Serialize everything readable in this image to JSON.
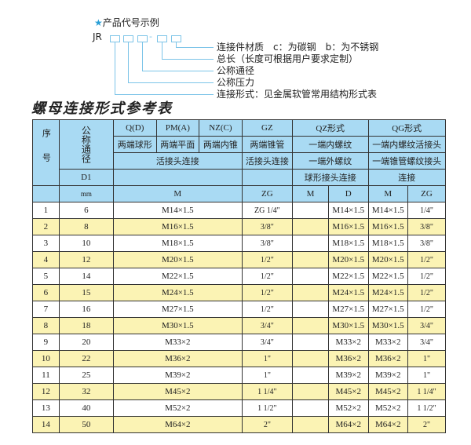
{
  "legend": {
    "title": "产品代号示例",
    "star_icon": "star",
    "code_prefix": "JR",
    "separator": "-",
    "items": [
      "连接件材质　c：为碳钢　b：为不锈钢",
      "总长（长度可根据用户要求定制）",
      "公称通径",
      "公称压力",
      "连接形式：见金属软管常用结构形式表"
    ]
  },
  "title": "螺母连接形式参考表",
  "header": {
    "seq": "序号",
    "dn": "公称通径",
    "d1": "D1",
    "mm": "mm",
    "q": "Q(D)",
    "pm": "PM(A)",
    "nz": "NZ(C)",
    "gz": "GZ",
    "qz": "QZ形式",
    "qg": "QG形式",
    "q2": "两端球形",
    "pm2": "两端平面",
    "nz2": "两端内锥",
    "gz2": "两端锥管",
    "qz2": "一端内螺纹",
    "qg2": "一端内螺纹活接头",
    "huo": "活接头连接",
    "gz3": "活接头连接",
    "qz3": "一端外螺纹",
    "qg3": "一端锥管螺纹接头",
    "qz4": "球形接头连接",
    "qg4": "连接",
    "m": "M",
    "zg": "ZG",
    "qzm": "M",
    "qzd": "D",
    "qgm": "M",
    "qgzg": "ZG"
  },
  "colors": {
    "header": "#a9daf3",
    "alt_row": "#fbf3b4",
    "accent": "#2a9fd6"
  },
  "rows": [
    {
      "n": "1",
      "dn": "6",
      "m": "M14×1.5",
      "zg": "ZG 1/4\"",
      "qzm": "",
      "d": "M14×1.5",
      "qgm": "M14×1.5",
      "qgzg": "1/4\""
    },
    {
      "n": "2",
      "dn": "8",
      "m": "M16×1.5",
      "zg": "3/8\"",
      "qzm": "",
      "d": "M16×1.5",
      "qgm": "M16×1.5",
      "qgzg": "3/8\""
    },
    {
      "n": "3",
      "dn": "10",
      "m": "M18×1.5",
      "zg": "3/8\"",
      "qzm": "",
      "d": "M18×1.5",
      "qgm": "M18×1.5",
      "qgzg": "3/8\""
    },
    {
      "n": "4",
      "dn": "12",
      "m": "M20×1.5",
      "zg": "1/2\"",
      "qzm": "",
      "d": "M20×1.5",
      "qgm": "M20×1.5",
      "qgzg": "1/2\""
    },
    {
      "n": "5",
      "dn": "14",
      "m": "M22×1.5",
      "zg": "1/2\"",
      "qzm": "",
      "d": "M22×1.5",
      "qgm": "M22×1.5",
      "qgzg": "1/2\""
    },
    {
      "n": "6",
      "dn": "15",
      "m": "M24×1.5",
      "zg": "1/2\"",
      "qzm": "",
      "d": "M24×1.5",
      "qgm": "M24×1.5",
      "qgzg": "1/2\""
    },
    {
      "n": "7",
      "dn": "16",
      "m": "M27×1.5",
      "zg": "1/2\"",
      "qzm": "",
      "d": "M27×1.5",
      "qgm": "M27×1.5",
      "qgzg": "1/2\""
    },
    {
      "n": "8",
      "dn": "18",
      "m": "M30×1.5",
      "zg": "3/4\"",
      "qzm": "",
      "d": "M30×1.5",
      "qgm": "M30×1.5",
      "qgzg": "3/4\""
    },
    {
      "n": "9",
      "dn": "20",
      "m": "M33×2",
      "zg": "3/4\"",
      "qzm": "",
      "d": "M33×2",
      "qgm": "M33×2",
      "qgzg": "3/4\""
    },
    {
      "n": "10",
      "dn": "22",
      "m": "M36×2",
      "zg": "1\"",
      "qzm": "",
      "d": "M36×2",
      "qgm": "M36×2",
      "qgzg": "1\""
    },
    {
      "n": "11",
      "dn": "25",
      "m": "M39×2",
      "zg": "1\"",
      "qzm": "",
      "d": "M39×2",
      "qgm": "M39×2",
      "qgzg": "1\""
    },
    {
      "n": "12",
      "dn": "32",
      "m": "M45×2",
      "zg": "1 1/4\"",
      "qzm": "",
      "d": "M45×2",
      "qgm": "M45×2",
      "qgzg": "1 1/4\""
    },
    {
      "n": "13",
      "dn": "40",
      "m": "M52×2",
      "zg": "1 1/2\"",
      "qzm": "",
      "d": "M52×2",
      "qgm": "M52×2",
      "qgzg": "1 1/2\""
    },
    {
      "n": "14",
      "dn": "50",
      "m": "M64×2",
      "zg": "2\"",
      "qzm": "",
      "d": "M64×2",
      "qgm": "M64×2",
      "qgzg": "2\""
    }
  ]
}
